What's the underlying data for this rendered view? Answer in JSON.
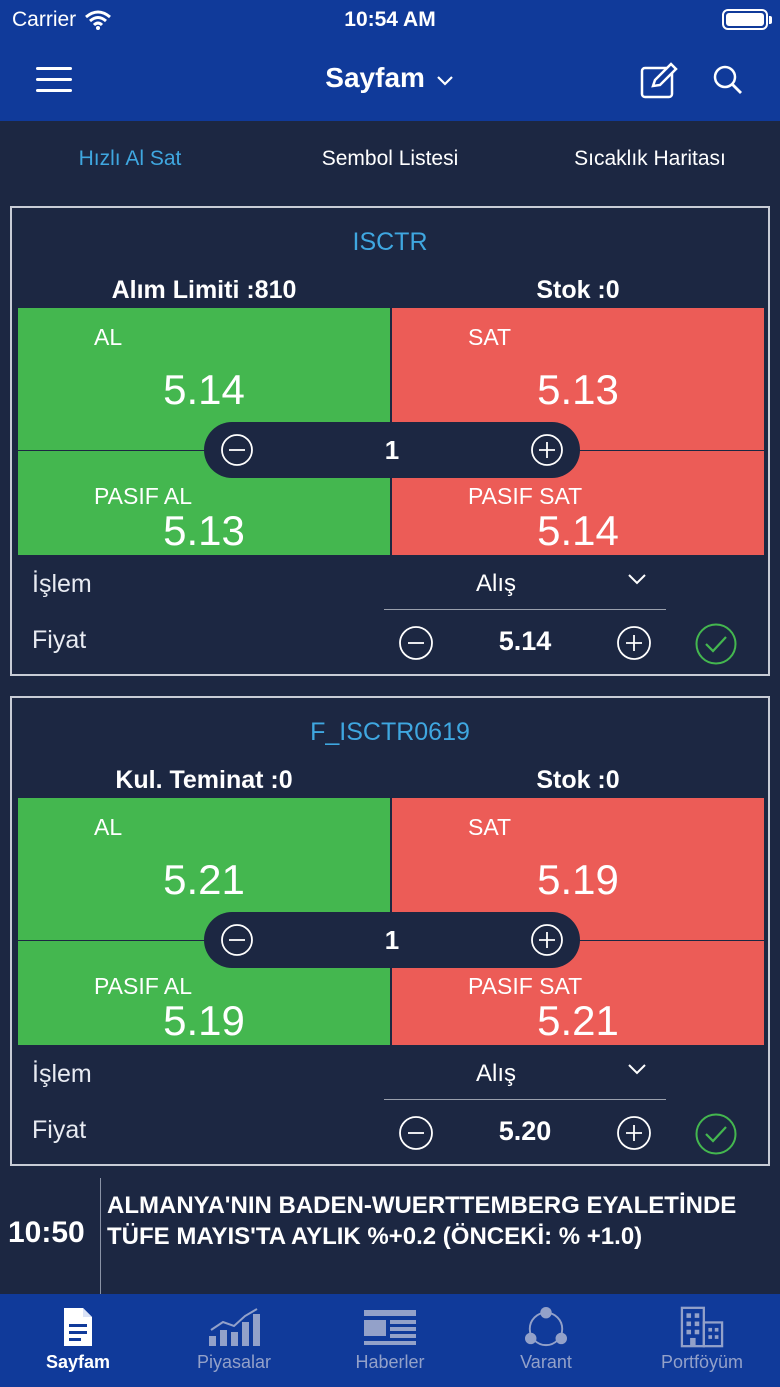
{
  "status": {
    "carrier": "Carrier",
    "time": "10:54 AM"
  },
  "nav": {
    "title": "Sayfam"
  },
  "tabs": [
    {
      "label": "Hızlı Al Sat",
      "active": true
    },
    {
      "label": "Sembol Listesi",
      "active": false
    },
    {
      "label": "Sıcaklık Haritası",
      "active": false
    }
  ],
  "cards": [
    {
      "symbol": "ISCTR",
      "left_limit": "Alım Limiti :810",
      "right_limit": "Stok :0",
      "al_label": "AL",
      "al_value": "5.14",
      "sat_label": "SAT",
      "sat_value": "5.13",
      "pasif_al_label": "PASIF AL",
      "pasif_al_value": "5.13",
      "pasif_sat_label": "PASIF SAT",
      "pasif_sat_value": "5.14",
      "quantity": "1",
      "islem_label": "İşlem",
      "islem_value": "Alış",
      "fiyat_label": "Fiyat",
      "fiyat_value": "5.14"
    },
    {
      "symbol": "F_ISCTR0619",
      "left_limit": "Kul. Teminat :0",
      "right_limit": "Stok :0",
      "al_label": "AL",
      "al_value": "5.21",
      "sat_label": "SAT",
      "sat_value": "5.19",
      "pasif_al_label": "PASIF AL",
      "pasif_al_value": "5.19",
      "pasif_sat_label": "PASIF SAT",
      "pasif_sat_value": "5.21",
      "quantity": "1",
      "islem_label": "İşlem",
      "islem_value": "Alış",
      "fiyat_label": "Fiyat",
      "fiyat_value": "5.20"
    }
  ],
  "news": {
    "time": "10:50",
    "headline": "ALMANYA'NIN BADEN-WUERTTEMBERG EYALETİNDE TÜFE  MAYIS'TA AYLIK %+0.2 (ÖNCEKİ: % +1.0)"
  },
  "tabbar": [
    {
      "label": "Sayfam",
      "icon": "document-icon",
      "active": true
    },
    {
      "label": "Piyasalar",
      "icon": "bar-chart-icon",
      "active": false
    },
    {
      "label": "Haberler",
      "icon": "newspaper-icon",
      "active": false
    },
    {
      "label": "Varant",
      "icon": "network-icon",
      "active": false
    },
    {
      "label": "Portföyüm",
      "icon": "buildings-icon",
      "active": false
    }
  ],
  "colors": {
    "buy": "#44b74f",
    "sell": "#ec5c57",
    "accent": "#3fa7e0",
    "header": "#103a9a",
    "background": "#1c2742"
  }
}
